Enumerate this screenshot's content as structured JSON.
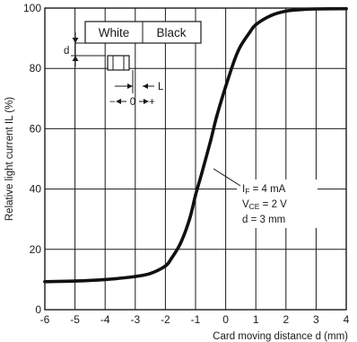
{
  "chart_data": {
    "type": "line",
    "xlabel": "Card moving distance d (mm)",
    "ylabel": "Relative light current IL (%)",
    "xlim": [
      -6,
      4
    ],
    "ylim": [
      0,
      100
    ],
    "x_ticks": [
      -6,
      -5,
      -4,
      -3,
      -2,
      -1,
      0,
      1,
      2,
      3,
      4
    ],
    "y_ticks": [
      0,
      20,
      40,
      60,
      80,
      100
    ],
    "grid": true,
    "series": [
      {
        "x": [
          -6,
          -5,
          -4,
          -3,
          -2.5,
          -2,
          -1.8,
          -1.5,
          -1.2,
          -1,
          -0.8,
          -0.5,
          -0.3,
          0,
          0.3,
          0.5,
          0.8,
          1,
          1.5,
          2,
          2.5,
          3,
          4
        ],
        "y": [
          9.3,
          9.5,
          10,
          11,
          12,
          14.5,
          17,
          22,
          30,
          38,
          45,
          56,
          64,
          74,
          83,
          87.5,
          92,
          94.5,
          97.5,
          99,
          99.5,
          99.7,
          99.8
        ]
      }
    ],
    "annotation": {
      "lines": [
        "I_F = 4 mA",
        "V_CE = 2 V",
        "d = 3 mm"
      ],
      "line1": {
        "main": "I",
        "sub": "F",
        "rest": " = 4 mA"
      },
      "line2": {
        "main": "V",
        "sub": "CE",
        "rest": " = 2 V"
      },
      "line3": "d = 3 mm"
    },
    "inset": {
      "labels": [
        "White",
        "Black"
      ],
      "d_label": "d",
      "l_label": "L",
      "origin_label": "0",
      "minus_sign": "−",
      "plus_sign": "+"
    }
  }
}
